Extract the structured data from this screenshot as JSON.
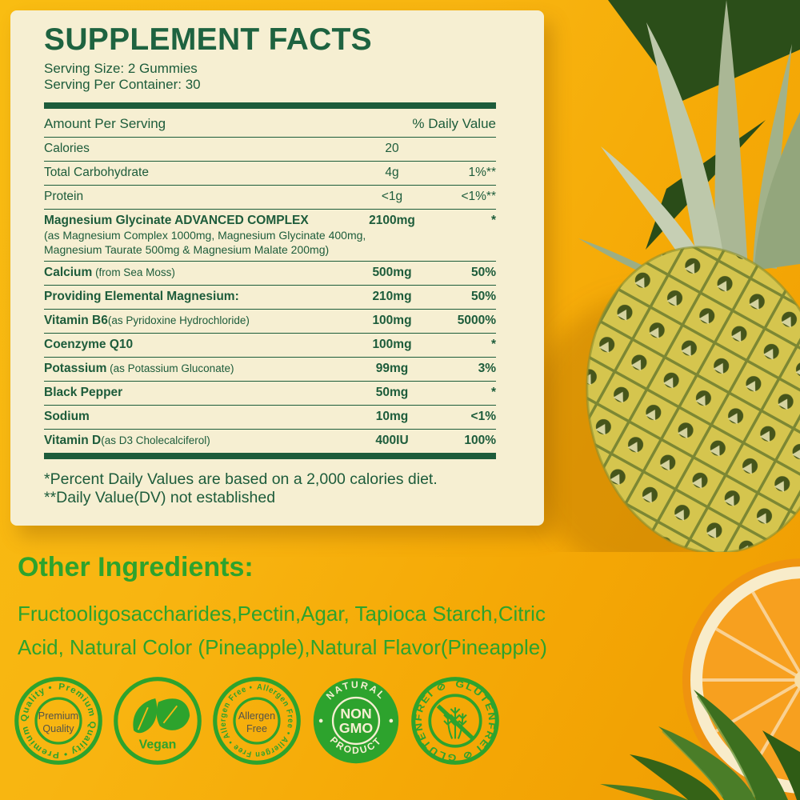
{
  "colors": {
    "panel_green": "#1d5c3b",
    "bright_green": "#2da32d",
    "card_bg": "#f6efd2",
    "bg_yellow": "#f8b511",
    "bg_orange": "#ef9c02",
    "orange_flesh": "#f7a01f"
  },
  "panel": {
    "title": "SUPPLEMENT FACTS",
    "serving_size": "Serving Size: 2 Gummies",
    "serving_per_container": "Serving Per Container: 30",
    "col_amount": "Amount Per Serving",
    "col_dv": "% Daily Value",
    "rows": [
      {
        "name": "Calories",
        "amount": "20",
        "dv": "",
        "bold": false
      },
      {
        "name": "Total Carbohydrate",
        "amount": "4g",
        "dv": "1%**",
        "bold": false
      },
      {
        "name": "Protein",
        "amount": "<1g",
        "dv": "<1%**",
        "bold": false
      },
      {
        "name": "Magnesium Glycinate ADVANCED COMPLEX",
        "amount": "2100mg",
        "dv": "*",
        "bold": true,
        "sub": [
          "(as Magnesium Complex 1000mg, Magnesium Glycinate 400mg,",
          "Magnesium Taurate 500mg & Magnesium Malate 200mg)"
        ]
      },
      {
        "name": "Calcium",
        "suffix": " (from Sea Moss)",
        "amount": "500mg",
        "dv": "50%",
        "bold": true
      },
      {
        "name": "Providing Elemental Magnesium:",
        "amount": "210mg",
        "dv": "50%",
        "bold": true
      },
      {
        "name": "Vitamin B6",
        "suffix": "(as Pyridoxine Hydrochloride)",
        "amount": "100mg",
        "dv": "5000%",
        "bold": true
      },
      {
        "name": "Coenzyme Q10",
        "amount": "100mg",
        "dv": "*",
        "bold": true
      },
      {
        "name": "Potassium",
        "suffix": " (as Potassium Gluconate)",
        "amount": "99mg",
        "dv": "3%",
        "bold": true
      },
      {
        "name": "Black Pepper",
        "amount": "50mg",
        "dv": "*",
        "bold": true
      },
      {
        "name": "Sodium",
        "amount": "10mg",
        "dv": "<1%",
        "bold": true
      },
      {
        "name": "Vitamin D",
        "suffix": "(as D3 Cholecalciferol)",
        "amount": "400IU",
        "dv": "100%",
        "bold": true
      }
    ],
    "footnotes": [
      "*Percent Daily Values are based on a 2,000 calories diet.",
      "**Daily Value(DV) not established"
    ]
  },
  "other_ingredients": {
    "heading": "Other Ingredients:",
    "lines": [
      "Fructooligosaccharides,Pectin,Agar, Tapioca Starch,Citric",
      "Acid, Natural Color (Pineapple),Natural Flavor(Pineapple)"
    ]
  },
  "badges": {
    "premium": {
      "ring_text": "Premium Quality • Premium Quality •",
      "center_line1": "Premium",
      "center_line2": "Quality"
    },
    "vegan": {
      "label": "Vegan"
    },
    "allergen": {
      "ring_text": "Allergen Free • Allergen Free • Allergen Free •",
      "center_line1": "Allergen",
      "center_line2": "Free"
    },
    "non_gmo": {
      "top": "NATURAL",
      "center_line1": "NON",
      "center_line2": "GMO",
      "bottom": "PRODUCT"
    },
    "glutenfrei": {
      "ring_text": "GLUTENFREI ⊘ GLUTENFREI ⊘"
    }
  }
}
